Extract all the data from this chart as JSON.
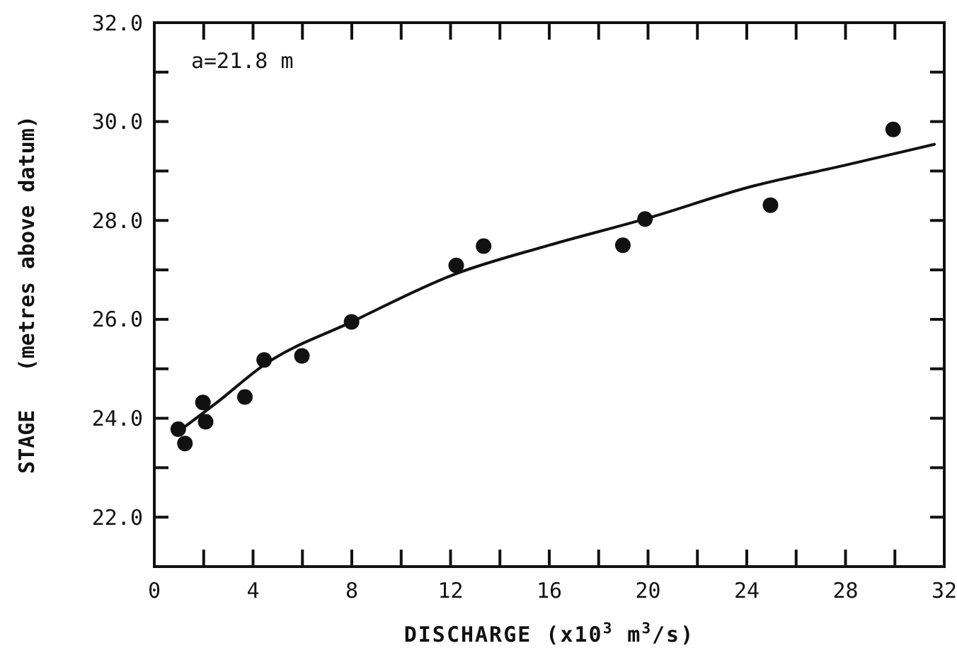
{
  "chart_data": {
    "type": "scatter",
    "xlabel": "DISCHARGE (x10$^{3}$ m$^{3}$/s)",
    "ylabel": "STAGE   (metres above datum)",
    "annotations": [
      "a=21.8 m"
    ],
    "xlim": [
      0,
      32
    ],
    "ylim": [
      21,
      32
    ],
    "xticks": [
      0,
      {
        "value": 2,
        "label": null
      },
      4,
      {
        "value": 6,
        "label": null
      },
      8,
      {
        "value": 10,
        "label": null
      },
      12,
      {
        "value": 14,
        "label": null
      },
      16,
      {
        "value": 18,
        "label": null
      },
      20,
      {
        "value": 22,
        "label": null
      },
      24,
      {
        "value": 26,
        "label": null
      },
      28,
      {
        "value": 30,
        "label": null
      },
      32
    ],
    "yticks": [
      {
        "value": 22,
        "label": "22.0"
      },
      {
        "value": 23,
        "label": null
      },
      {
        "value": 24,
        "label": "24.0"
      },
      {
        "value": 25,
        "label": null
      },
      {
        "value": 26,
        "label": "26.0"
      },
      {
        "value": 27,
        "label": null
      },
      {
        "value": 28,
        "label": "28.0"
      },
      {
        "value": 29,
        "label": null
      },
      {
        "value": 30,
        "label": "30.0"
      },
      {
        "value": 31,
        "label": null
      },
      {
        "value": 32,
        "label": "32.0"
      }
    ],
    "grid": false,
    "marker": "circle",
    "series": [
      {
        "color": "#111111",
        "x": [
          0.97,
          1.24,
          1.97,
          2.08,
          3.67,
          4.45,
          5.98,
          7.99,
          12.23,
          13.34,
          18.98,
          19.88,
          24.96,
          29.93
        ],
        "values": [
          23.78,
          23.49,
          24.32,
          23.93,
          24.43,
          25.18,
          25.26,
          25.95,
          27.09,
          27.48,
          27.5,
          28.03,
          28.31,
          29.84
        ]
      },
      {
        "type": "line",
        "color": "#111111",
        "line_style": "solid",
        "marker": "none",
        "x": [
          1.0,
          2.54,
          4.45,
          8.0,
          12.1,
          16,
          19.88,
          24.14,
          28,
          31.6
        ],
        "values": [
          23.74,
          24.32,
          25.08,
          25.95,
          26.9,
          27.5,
          28.03,
          28.68,
          29.12,
          29.54
        ]
      }
    ]
  }
}
